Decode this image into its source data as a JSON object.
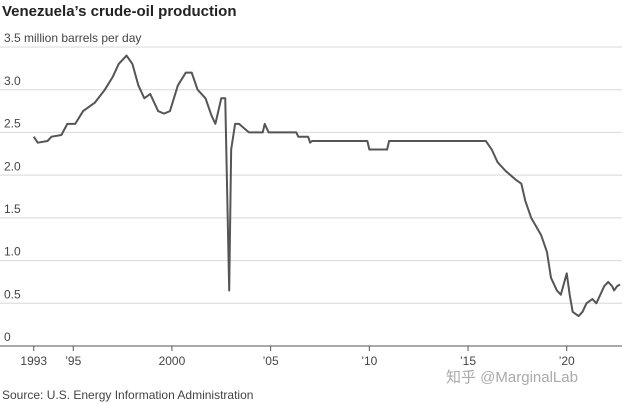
{
  "chart_data": {
    "type": "line",
    "title": "Venezuela’s crude-oil production",
    "source": "Source: U.S. Energy Information Administration",
    "watermark": "知乎 @MarginalLab",
    "xlim": [
      1992.1,
      2022.8
    ],
    "ylim": [
      0,
      3.5
    ],
    "yticks": [
      0,
      0.5,
      {
        "value": 1.0,
        "label": "1.0"
      },
      1.5,
      {
        "value": 2.0,
        "label": "2.0"
      },
      2.5,
      {
        "value": 3.0,
        "label": "3.0"
      },
      {
        "value": 3.5,
        "label": "3.5 million barrels per day"
      }
    ],
    "xticks": [
      1993,
      {
        "value": 1995,
        "label": "’95"
      },
      2000,
      {
        "value": 2005,
        "label": "’05"
      },
      {
        "value": 2010,
        "label": "’10"
      },
      {
        "value": 2015,
        "label": "’15"
      },
      {
        "value": 2020,
        "label": "’20"
      }
    ],
    "grid": true,
    "series": [
      {
        "name": "Crude-oil production",
        "color": "#555555",
        "x": [
          1993.0,
          1993.2,
          1993.7,
          1993.9,
          1994.4,
          1994.7,
          1995.1,
          1995.5,
          1995.8,
          1996.1,
          1996.6,
          1997.0,
          1997.3,
          1997.7,
          1998.0,
          1998.3,
          1998.6,
          1998.9,
          1999.3,
          1999.6,
          1999.9,
          2000.3,
          2000.7,
          2001.0,
          2001.3,
          2001.7,
          2002.0,
          2002.2,
          2002.5,
          2002.7,
          2002.9,
          2003.0,
          2003.2,
          2003.4,
          2003.9,
          2004.6,
          2004.7,
          2004.9,
          2006.3,
          2006.4,
          2006.9,
          2007.0,
          2007.1,
          2009.9,
          2010.0,
          2010.9,
          2011.0,
          2015.9,
          2016.2,
          2016.5,
          2016.9,
          2017.4,
          2017.7,
          2017.9,
          2018.2,
          2018.7,
          2019.0,
          2019.2,
          2019.5,
          2019.7,
          2020.0,
          2020.15,
          2020.3,
          2020.6,
          2020.8,
          2021.0,
          2021.3,
          2021.5,
          2021.7,
          2021.9,
          2022.1,
          2022.3,
          2022.4,
          2022.55,
          2022.7
        ],
        "values": [
          2.45,
          2.38,
          2.4,
          2.45,
          2.47,
          2.6,
          2.6,
          2.75,
          2.8,
          2.85,
          3.0,
          3.15,
          3.3,
          3.4,
          3.3,
          3.05,
          2.9,
          2.95,
          2.75,
          2.72,
          2.75,
          3.05,
          3.2,
          3.2,
          3.0,
          2.9,
          2.7,
          2.6,
          2.9,
          2.9,
          0.65,
          2.3,
          2.6,
          2.6,
          2.5,
          2.5,
          2.6,
          2.5,
          2.5,
          2.45,
          2.45,
          2.38,
          2.4,
          2.4,
          2.3,
          2.3,
          2.4,
          2.4,
          2.3,
          2.15,
          2.05,
          1.95,
          1.9,
          1.7,
          1.5,
          1.3,
          1.1,
          0.8,
          0.65,
          0.6,
          0.85,
          0.6,
          0.4,
          0.35,
          0.4,
          0.5,
          0.55,
          0.5,
          0.6,
          0.7,
          0.75,
          0.7,
          0.65,
          0.7,
          0.72
        ]
      }
    ]
  }
}
